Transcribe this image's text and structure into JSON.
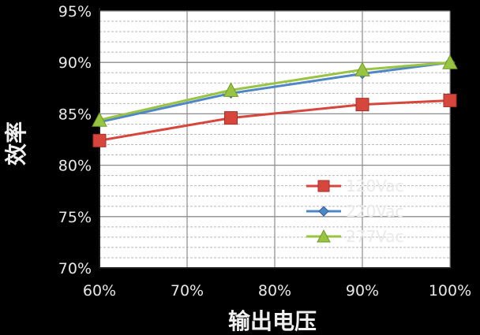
{
  "chart_data": {
    "type": "line",
    "title": "",
    "xlabel": "输出电压",
    "ylabel": "效率",
    "categories": [
      "60%",
      "70%",
      "80%",
      "90%",
      "100%"
    ],
    "x": [
      60,
      75,
      90,
      100
    ],
    "xlim": [
      60,
      100
    ],
    "ylim": [
      70,
      95
    ],
    "yticks": [
      "70%",
      "75%",
      "80%",
      "85%",
      "90%",
      "95%"
    ],
    "grid": true,
    "legend_position": "bottom-right",
    "series": [
      {
        "name": "120Vac",
        "color": "#d7463c",
        "marker": "square",
        "values": [
          82.4,
          84.6,
          85.9,
          86.3
        ]
      },
      {
        "name": "220Vac",
        "color": "#4f86c6",
        "marker": "diamond",
        "values": [
          84.2,
          87.0,
          88.9,
          90.0
        ]
      },
      {
        "name": "277Vac",
        "color": "#98c442",
        "marker": "triangle",
        "values": [
          84.4,
          87.3,
          89.3,
          90.0
        ]
      }
    ]
  }
}
